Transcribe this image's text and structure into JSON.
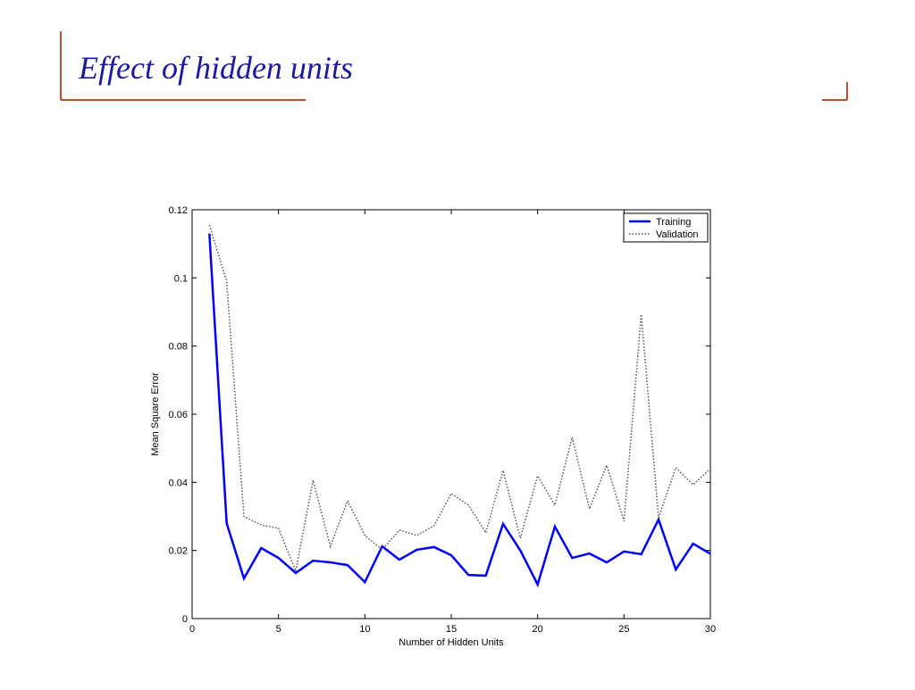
{
  "slide": {
    "title": "Effect of hidden units"
  },
  "chart_data": {
    "type": "line",
    "xlabel": "Number of Hidden Units",
    "ylabel": "Mean Square Error",
    "x": [
      1,
      2,
      3,
      4,
      5,
      6,
      7,
      8,
      9,
      10,
      11,
      12,
      13,
      14,
      15,
      16,
      17,
      18,
      19,
      20,
      21,
      22,
      23,
      24,
      25,
      26,
      27,
      28,
      29,
      30
    ],
    "series": [
      {
        "name": "Training",
        "color": "#0000ff",
        "style": "solid",
        "values": [
          0.113,
          0.028,
          0.0118,
          0.0207,
          0.0178,
          0.0134,
          0.017,
          0.0165,
          0.0157,
          0.0107,
          0.0212,
          0.0173,
          0.0202,
          0.021,
          0.0186,
          0.0128,
          0.0126,
          0.0278,
          0.02,
          0.01,
          0.027,
          0.0178,
          0.0191,
          0.0165,
          0.0197,
          0.0189,
          0.0291,
          0.0144,
          0.022,
          0.019
        ]
      },
      {
        "name": "Validation",
        "color": "#555555",
        "style": "dotted",
        "values": [
          0.1155,
          0.099,
          0.03,
          0.0275,
          0.0265,
          0.0139,
          0.0406,
          0.0212,
          0.0346,
          0.0244,
          0.0202,
          0.026,
          0.0244,
          0.0272,
          0.0367,
          0.0333,
          0.0252,
          0.0435,
          0.0236,
          0.0419,
          0.0333,
          0.0532,
          0.0322,
          0.045,
          0.0286,
          0.0893,
          0.0296,
          0.0443,
          0.0393,
          0.044
        ]
      }
    ],
    "xlim": [
      0,
      30
    ],
    "xticks": [
      0,
      5,
      10,
      15,
      20,
      25,
      30
    ],
    "ylim": [
      0,
      0.12
    ],
    "yticks": [
      0,
      0.02,
      0.04,
      0.06,
      0.08,
      0.1,
      0.12
    ],
    "grid": false,
    "legend": "upper right"
  }
}
